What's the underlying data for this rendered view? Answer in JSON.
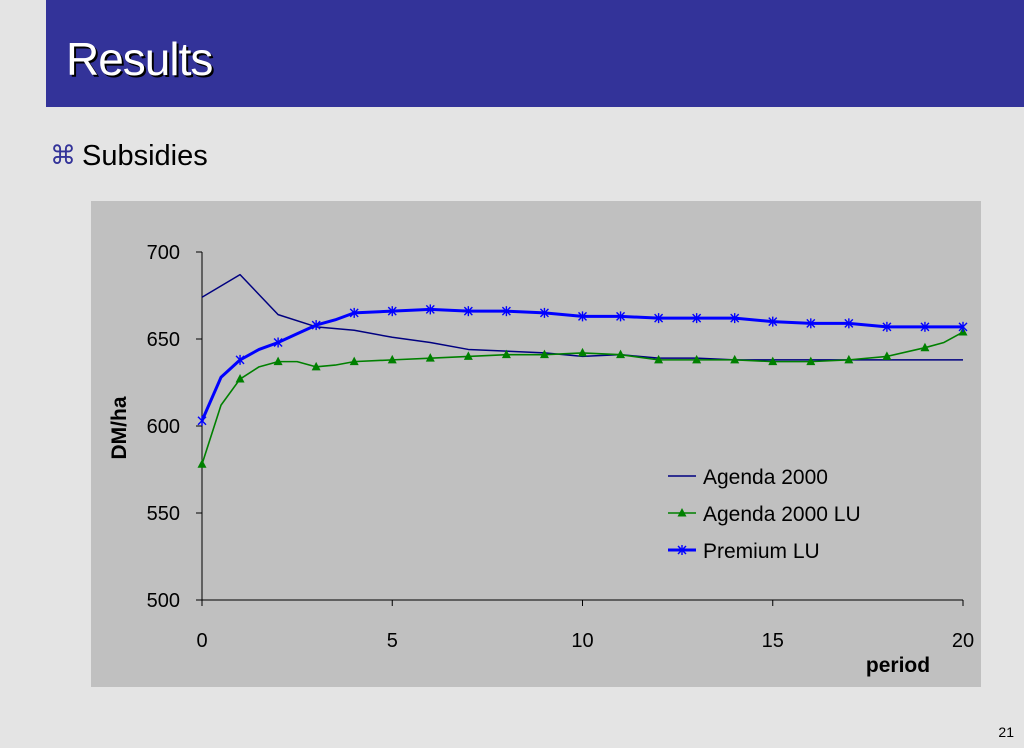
{
  "slide": {
    "title": "Results",
    "bullet_icon": "command-icon",
    "bullet_text": "Subsidies",
    "page_number": "21"
  },
  "colors": {
    "title_bar": "#333399",
    "chart_background": "#c0c0c0",
    "agenda_2000": "#000080",
    "agenda_2000_lu": "#008000",
    "premium_lu": "#0000ff"
  },
  "chart_data": {
    "type": "line",
    "xlabel": "period",
    "ylabel": "DM/ha",
    "xlim": [
      0,
      20
    ],
    "ylim": [
      500,
      700
    ],
    "xticks": [
      0,
      5,
      10,
      15,
      20
    ],
    "yticks": [
      500,
      550,
      600,
      650,
      700
    ],
    "grid": false,
    "legend": "bottom-right",
    "series": [
      {
        "name": "Agenda 2000",
        "marker": "none",
        "x": [
          0,
          1,
          2,
          3,
          4,
          5,
          6,
          7,
          8,
          9,
          10,
          11,
          12,
          13,
          14,
          15,
          16,
          17,
          18,
          19,
          20
        ],
        "values": [
          674,
          687,
          664,
          657,
          655,
          651,
          648,
          644,
          643,
          642,
          640,
          641,
          639,
          639,
          638,
          638,
          638,
          638,
          638,
          638,
          638
        ]
      },
      {
        "name": "Agenda 2000 LU",
        "marker": "triangle",
        "x": [
          0,
          0.5,
          1,
          1.5,
          2,
          2.5,
          3,
          3.5,
          4,
          5,
          6,
          7,
          8,
          9,
          10,
          11,
          12,
          13,
          14,
          15,
          16,
          17,
          18,
          19,
          19.5,
          20
        ],
        "values": [
          578,
          612,
          627,
          634,
          637,
          637,
          634,
          635,
          637,
          638,
          639,
          640,
          641,
          641,
          642,
          641,
          638,
          638,
          638,
          637,
          637,
          638,
          640,
          645,
          648,
          654
        ],
        "markers_at": [
          0,
          1,
          2,
          3,
          4,
          5,
          6,
          7,
          8,
          9,
          10,
          11,
          12,
          13,
          14,
          15,
          16,
          17,
          18,
          19,
          20
        ]
      },
      {
        "name": "Premium LU",
        "marker": "star",
        "x": [
          0,
          0.5,
          1,
          1.5,
          2,
          2.5,
          3,
          3.5,
          4,
          5,
          6,
          7,
          8,
          9,
          10,
          11,
          12,
          13,
          14,
          15,
          16,
          17,
          18,
          19,
          20
        ],
        "values": [
          603,
          628,
          638,
          644,
          648,
          653,
          658,
          661,
          665,
          666,
          667,
          666,
          666,
          665,
          663,
          663,
          662,
          662,
          662,
          660,
          659,
          659,
          657,
          657,
          657
        ],
        "markers_at": [
          0,
          1,
          2,
          3,
          4,
          5,
          6,
          7,
          8,
          9,
          10,
          11,
          12,
          13,
          14,
          15,
          16,
          17,
          18,
          19,
          20
        ]
      }
    ]
  }
}
